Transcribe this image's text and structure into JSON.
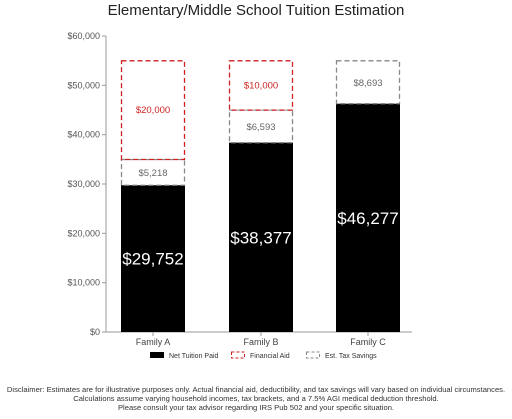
{
  "chart_data": {
    "type": "bar",
    "stacked": true,
    "title": "Elementary/Middle School Tuition Estimation",
    "categories": [
      "Family A",
      "Family B",
      "Family C"
    ],
    "ylim": [
      0,
      60000
    ],
    "yticks": [
      "$0",
      "$10,000",
      "$20,000",
      "$30,000",
      "$40,000",
      "$50,000",
      "$60,000"
    ],
    "ytick_values": [
      0,
      10000,
      20000,
      30000,
      40000,
      50000,
      60000
    ],
    "grid": false,
    "legend_position": "bottom",
    "series": [
      {
        "name": "Net Tuition Paid",
        "values": [
          29752,
          38377,
          46277
        ],
        "labels": [
          "$29,752",
          "$38,377",
          "$46,277"
        ],
        "color": "#000000"
      },
      {
        "name": "Est. Tax Savings",
        "values": [
          5218,
          6593,
          8693
        ],
        "labels": [
          "$5,218",
          "$6,593",
          "$8,693"
        ],
        "color": "#888888"
      },
      {
        "name": "Financial Aid",
        "values": [
          20000,
          10000,
          0
        ],
        "labels": [
          "$20,000",
          "$10,000",
          ""
        ],
        "color": "#cc2222"
      }
    ],
    "legend": [
      "Net Tuition Paid",
      "Financial Aid",
      "Est. Tax Savings"
    ]
  },
  "disclaimer": [
    "Disclaimer: Estimates are for illustrative purposes only. Actual financial aid, deductibility, and tax savings will vary based on individual circumstances.",
    "Calculations assume varying household incomes, tax brackets, and a 7.5% AGI medical deduction threshold.",
    "Please consult your tax advisor regarding IRS Pub 502 and your specific situation."
  ]
}
